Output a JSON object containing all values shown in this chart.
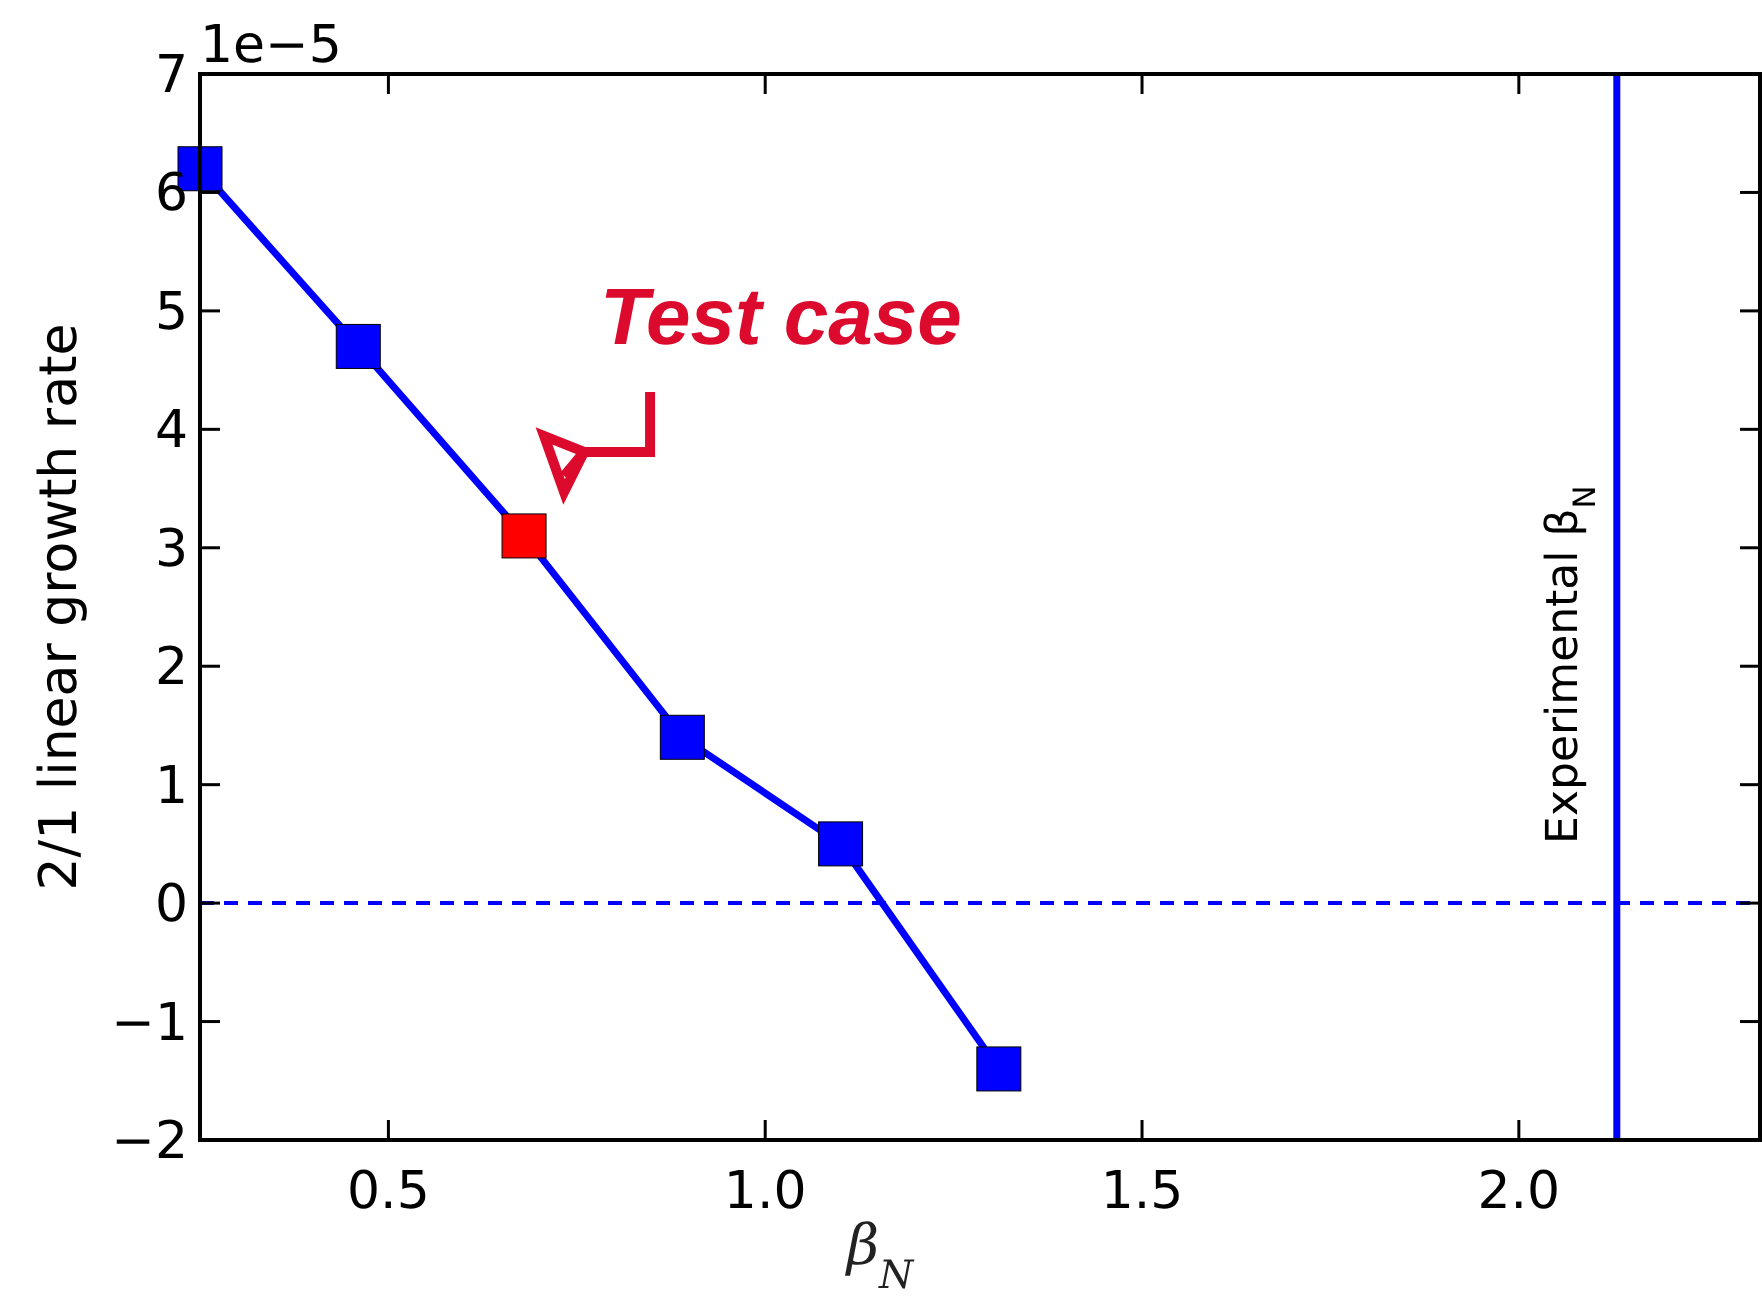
{
  "chart_data": {
    "type": "line",
    "xlabel": "β$_{N}$",
    "ylabel": "2/1 linear growth rate",
    "x": [
      0.25,
      0.46,
      0.68,
      0.89,
      1.1,
      1.31
    ],
    "series": [
      {
        "color": "#0000ff",
        "colors": [
          "#0000ff",
          "#0000ff",
          "#ff0000",
          "#0000ff",
          "#0000ff",
          "#0000ff"
        ],
        "values": [
          6.2,
          4.7,
          3.1,
          1.4,
          0.5,
          -1.4
        ]
      }
    ],
    "marker": "square",
    "line_style": "solid",
    "xlim": [
      0.25,
      2.32
    ],
    "xticks": [
      {
        "value": 0.5,
        "label": "0.5"
      },
      {
        "value": 1,
        "label": "1.0"
      },
      {
        "value": 1.5,
        "label": "1.5"
      },
      {
        "value": 2,
        "label": "2.0"
      }
    ],
    "ylim": [
      -2,
      7
    ],
    "yticks": [
      -2,
      -1,
      0,
      1,
      2,
      3,
      4,
      5,
      6,
      7
    ],
    "ref_lines": [
      {
        "axis": "y",
        "value": 0,
        "color": "#0000ff",
        "line_style": "dashed"
      },
      {
        "axis": "x",
        "value": 2.13,
        "label": "Experimental β$_{N}$",
        "color": "#0000ff",
        "line_style": "solid"
      }
    ],
    "annotations": [
      "1e−5",
      {
        "text": "Test case",
        "x": 0.68,
        "y": 3.1
      }
    ],
    "grid": false
  }
}
